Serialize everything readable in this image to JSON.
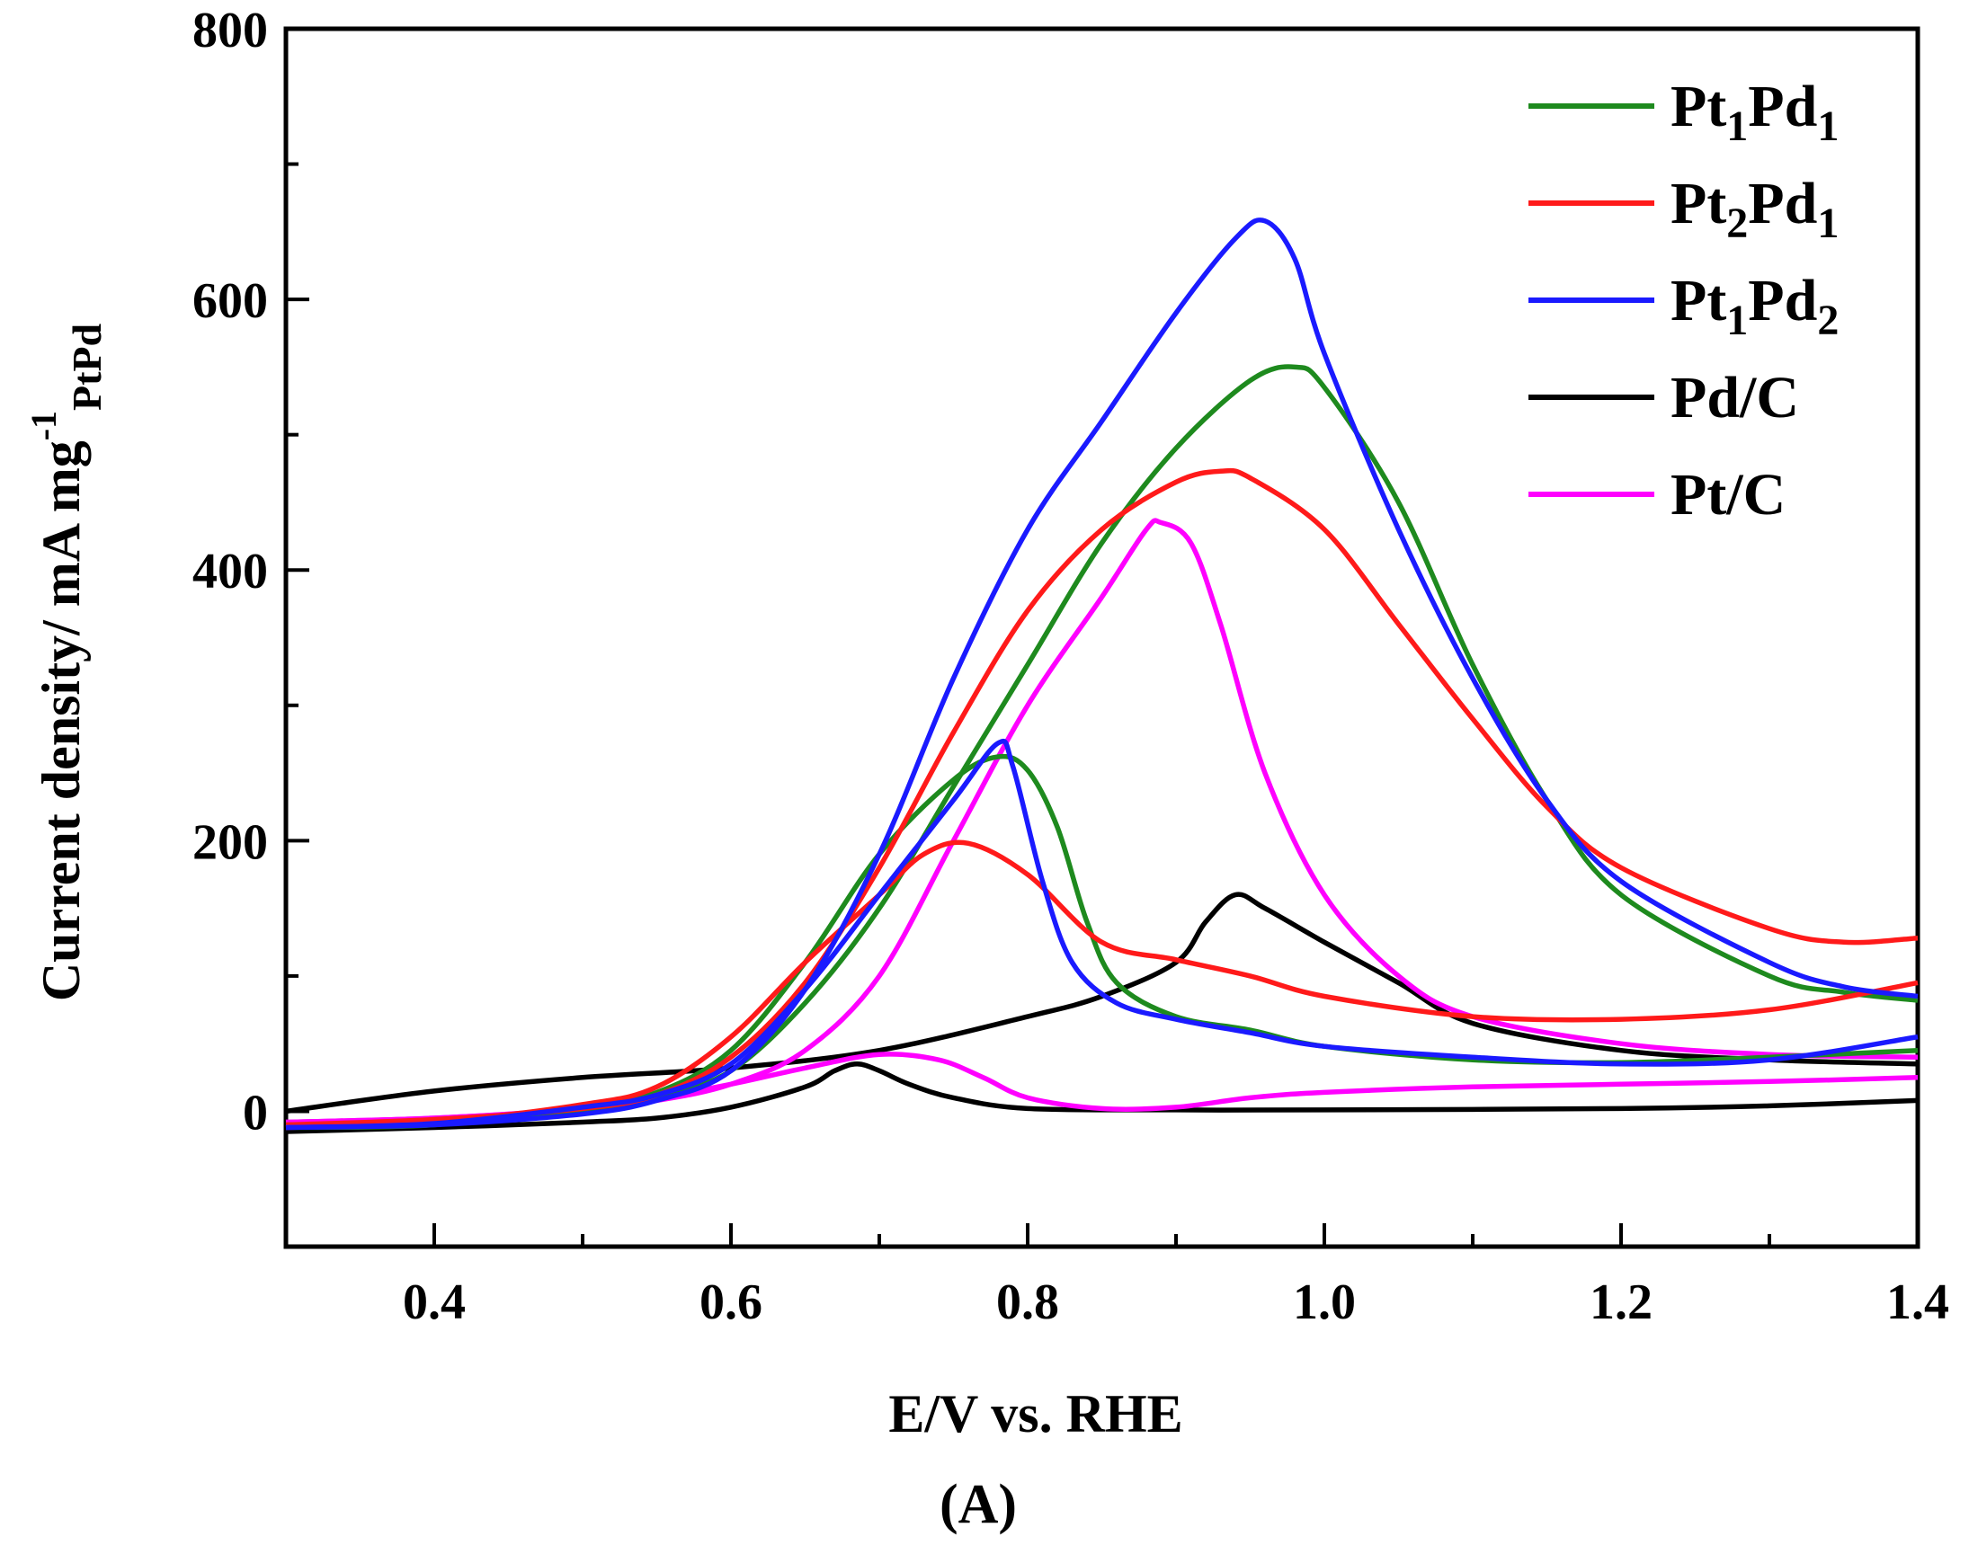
{
  "chart_data": {
    "type": "line",
    "panel_label": "(A)",
    "xlabel": "E/V vs. RHE",
    "ylabel": {
      "main": "Current density/ mA mg",
      "sup": "-1",
      "sub": "PtPd"
    },
    "xlim": [
      0.3,
      1.4
    ],
    "ylim": [
      -100,
      800
    ],
    "x_ticks": [
      0.4,
      0.6,
      0.8,
      1.0,
      1.2,
      1.4
    ],
    "x_tick_labels": [
      "0.4",
      "0.6",
      "0.8",
      "1.0",
      "1.2",
      "1.4"
    ],
    "x_minor_ticks": [
      0.5,
      0.7,
      0.9,
      1.1,
      1.3
    ],
    "y_ticks": [
      0,
      200,
      400,
      600,
      800
    ],
    "y_tick_labels": [
      "0",
      "200",
      "400",
      "600",
      "800"
    ],
    "y_minor_ticks": [
      100,
      300,
      500,
      700
    ],
    "grid": false,
    "legend_position": "top-right",
    "series": [
      {
        "name": "Pt1Pd1",
        "legend": {
          "main": "Pt",
          "sub1": "1",
          "mid": "Pd",
          "sub2": "1"
        },
        "color": "#1e8a1e",
        "forward": [
          [
            0.3,
            -12
          ],
          [
            0.4,
            -10
          ],
          [
            0.5,
            4
          ],
          [
            0.55,
            14
          ],
          [
            0.6,
            45
          ],
          [
            0.65,
            110
          ],
          [
            0.7,
            190
          ],
          [
            0.75,
            245
          ],
          [
            0.78,
            262
          ],
          [
            0.8,
            252
          ],
          [
            0.82,
            210
          ],
          [
            0.84,
            140
          ],
          [
            0.86,
            95
          ],
          [
            0.9,
            70
          ],
          [
            0.95,
            60
          ],
          [
            1.0,
            48
          ],
          [
            1.1,
            38
          ],
          [
            1.2,
            36
          ],
          [
            1.3,
            40
          ],
          [
            1.4,
            45
          ]
        ],
        "backward": [
          [
            1.4,
            82
          ],
          [
            1.35,
            88
          ],
          [
            1.3,
            100
          ],
          [
            1.2,
            160
          ],
          [
            1.15,
            230
          ],
          [
            1.1,
            330
          ],
          [
            1.05,
            450
          ],
          [
            1.0,
            535
          ],
          [
            0.98,
            550
          ],
          [
            0.95,
            540
          ],
          [
            0.9,
            490
          ],
          [
            0.85,
            420
          ],
          [
            0.8,
            330
          ],
          [
            0.75,
            240
          ],
          [
            0.7,
            150
          ],
          [
            0.65,
            80
          ],
          [
            0.6,
            30
          ],
          [
            0.55,
            10
          ],
          [
            0.5,
            0
          ],
          [
            0.4,
            -8
          ],
          [
            0.3,
            -10
          ]
        ]
      },
      {
        "name": "Pt2Pd1",
        "legend": {
          "main": "Pt",
          "sub1": "2",
          "mid": "Pd",
          "sub2": "1"
        },
        "color": "#ff1a1a",
        "forward": [
          [
            0.3,
            -12
          ],
          [
            0.4,
            -8
          ],
          [
            0.5,
            5
          ],
          [
            0.55,
            18
          ],
          [
            0.6,
            55
          ],
          [
            0.65,
            110
          ],
          [
            0.7,
            160
          ],
          [
            0.73,
            190
          ],
          [
            0.76,
            198
          ],
          [
            0.8,
            175
          ],
          [
            0.85,
            125
          ],
          [
            0.9,
            112
          ],
          [
            0.95,
            100
          ],
          [
            1.0,
            85
          ],
          [
            1.1,
            70
          ],
          [
            1.2,
            68
          ],
          [
            1.3,
            75
          ],
          [
            1.4,
            95
          ]
        ],
        "backward": [
          [
            1.4,
            128
          ],
          [
            1.35,
            125
          ],
          [
            1.3,
            135
          ],
          [
            1.2,
            180
          ],
          [
            1.15,
            225
          ],
          [
            1.1,
            290
          ],
          [
            1.05,
            360
          ],
          [
            1.0,
            430
          ],
          [
            0.95,
            468
          ],
          [
            0.93,
            473
          ],
          [
            0.9,
            465
          ],
          [
            0.85,
            430
          ],
          [
            0.8,
            370
          ],
          [
            0.75,
            280
          ],
          [
            0.7,
            180
          ],
          [
            0.65,
            95
          ],
          [
            0.6,
            40
          ],
          [
            0.55,
            12
          ],
          [
            0.5,
            2
          ],
          [
            0.4,
            -6
          ],
          [
            0.3,
            -10
          ]
        ]
      },
      {
        "name": "Pt1Pd2",
        "legend": {
          "main": "Pt",
          "sub1": "1",
          "mid": "Pd",
          "sub2": "2"
        },
        "color": "#1a1aff",
        "forward": [
          [
            0.3,
            -12
          ],
          [
            0.4,
            -9
          ],
          [
            0.5,
            3
          ],
          [
            0.55,
            12
          ],
          [
            0.6,
            35
          ],
          [
            0.65,
            90
          ],
          [
            0.7,
            160
          ],
          [
            0.75,
            230
          ],
          [
            0.78,
            272
          ],
          [
            0.79,
            255
          ],
          [
            0.81,
            170
          ],
          [
            0.83,
            110
          ],
          [
            0.86,
            80
          ],
          [
            0.9,
            68
          ],
          [
            0.95,
            58
          ],
          [
            1.0,
            48
          ],
          [
            1.1,
            40
          ],
          [
            1.2,
            35
          ],
          [
            1.3,
            38
          ],
          [
            1.4,
            55
          ]
        ],
        "backward": [
          [
            1.4,
            85
          ],
          [
            1.35,
            92
          ],
          [
            1.3,
            110
          ],
          [
            1.2,
            170
          ],
          [
            1.15,
            230
          ],
          [
            1.1,
            320
          ],
          [
            1.05,
            430
          ],
          [
            1.0,
            560
          ],
          [
            0.98,
            630
          ],
          [
            0.96,
            658
          ],
          [
            0.94,
            645
          ],
          [
            0.9,
            590
          ],
          [
            0.85,
            510
          ],
          [
            0.8,
            430
          ],
          [
            0.75,
            320
          ],
          [
            0.7,
            190
          ],
          [
            0.65,
            90
          ],
          [
            0.6,
            30
          ],
          [
            0.55,
            8
          ],
          [
            0.5,
            -2
          ],
          [
            0.4,
            -10
          ],
          [
            0.3,
            -12
          ]
        ]
      },
      {
        "name": "Pd/C",
        "legend": {
          "main": "Pd/C",
          "sub1": "",
          "mid": "",
          "sub2": ""
        },
        "color": "#000000",
        "forward": [
          [
            0.3,
            0
          ],
          [
            0.4,
            15
          ],
          [
            0.5,
            25
          ],
          [
            0.6,
            32
          ],
          [
            0.7,
            45
          ],
          [
            0.8,
            70
          ],
          [
            0.85,
            85
          ],
          [
            0.9,
            110
          ],
          [
            0.92,
            140
          ],
          [
            0.94,
            160
          ],
          [
            0.96,
            150
          ],
          [
            1.0,
            125
          ],
          [
            1.05,
            95
          ],
          [
            1.1,
            65
          ],
          [
            1.2,
            45
          ],
          [
            1.3,
            38
          ],
          [
            1.4,
            35
          ]
        ],
        "backward": [
          [
            1.4,
            8
          ],
          [
            1.3,
            4
          ],
          [
            1.2,
            2
          ],
          [
            1.0,
            1
          ],
          [
            0.9,
            1
          ],
          [
            0.8,
            2
          ],
          [
            0.75,
            10
          ],
          [
            0.72,
            20
          ],
          [
            0.7,
            30
          ],
          [
            0.685,
            35
          ],
          [
            0.67,
            30
          ],
          [
            0.65,
            18
          ],
          [
            0.6,
            3
          ],
          [
            0.55,
            -5
          ],
          [
            0.5,
            -8
          ],
          [
            0.4,
            -12
          ],
          [
            0.3,
            -15
          ]
        ]
      },
      {
        "name": "Pt/C",
        "legend": {
          "main": "Pt/C",
          "sub1": "",
          "mid": "",
          "sub2": ""
        },
        "color": "#ff00ff",
        "forward": [
          [
            0.3,
            -8
          ],
          [
            0.4,
            -5
          ],
          [
            0.5,
            2
          ],
          [
            0.55,
            8
          ],
          [
            0.6,
            20
          ],
          [
            0.65,
            45
          ],
          [
            0.7,
            100
          ],
          [
            0.75,
            200
          ],
          [
            0.8,
            300
          ],
          [
            0.85,
            380
          ],
          [
            0.88,
            430
          ],
          [
            0.89,
            435
          ],
          [
            0.91,
            420
          ],
          [
            0.93,
            360
          ],
          [
            0.96,
            250
          ],
          [
            1.0,
            160
          ],
          [
            1.05,
            100
          ],
          [
            1.1,
            70
          ],
          [
            1.2,
            50
          ],
          [
            1.3,
            42
          ],
          [
            1.4,
            40
          ]
        ],
        "backward": [
          [
            1.4,
            25
          ],
          [
            1.3,
            22
          ],
          [
            1.2,
            20
          ],
          [
            1.1,
            18
          ],
          [
            1.0,
            14
          ],
          [
            0.95,
            10
          ],
          [
            0.9,
            3
          ],
          [
            0.85,
            2
          ],
          [
            0.8,
            10
          ],
          [
            0.77,
            25
          ],
          [
            0.74,
            38
          ],
          [
            0.7,
            42
          ],
          [
            0.65,
            32
          ],
          [
            0.6,
            20
          ],
          [
            0.55,
            10
          ],
          [
            0.5,
            2
          ],
          [
            0.4,
            -5
          ],
          [
            0.3,
            -8
          ]
        ]
      }
    ]
  }
}
